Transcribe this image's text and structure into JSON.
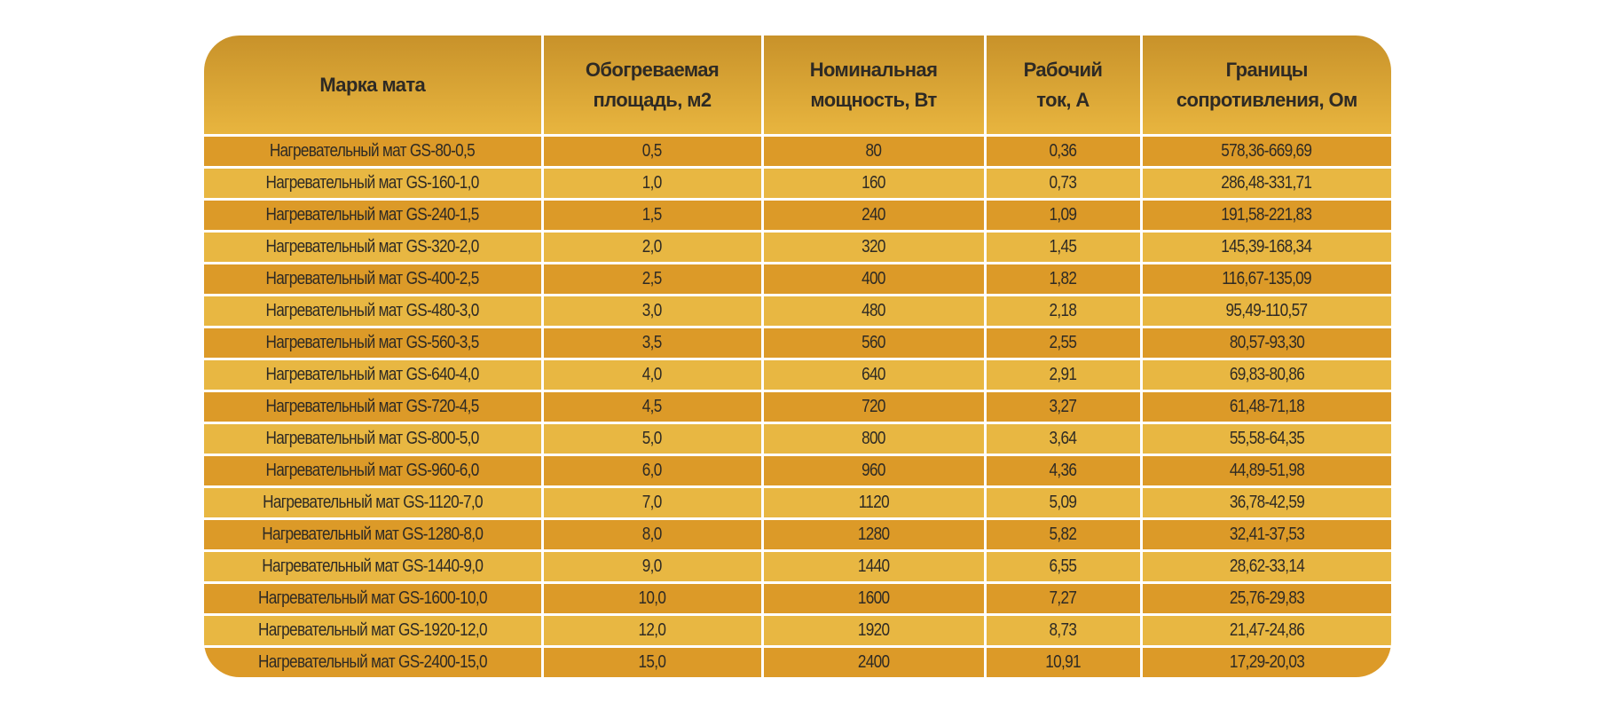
{
  "table": {
    "headers": [
      "Марка мата",
      "Обогреваемая площадь, м2",
      "Номинальная мощность, Вт",
      "Рабочий ток, А",
      "Границы сопротивления, Ом"
    ],
    "header_lines": [
      [
        "Марка мата"
      ],
      [
        "Обогреваемая",
        "площадь, м2"
      ],
      [
        "Номинальная",
        "мощность, Вт"
      ],
      [
        "Рабочий",
        "ток, А"
      ],
      [
        "Границы",
        "сопротивления, Ом"
      ]
    ],
    "rows": [
      [
        "Нагревательный мат GS-80-0,5",
        "0,5",
        "80",
        "0,36",
        "578,36-669,69"
      ],
      [
        "Нагревательный мат GS-160-1,0",
        "1,0",
        "160",
        "0,73",
        "286,48-331,71"
      ],
      [
        "Нагревательный мат GS-240-1,5",
        "1,5",
        "240",
        "1,09",
        "191,58-221,83"
      ],
      [
        "Нагревательный мат GS-320-2,0",
        "2,0",
        "320",
        "1,45",
        "145,39-168,34"
      ],
      [
        "Нагревательный мат GS-400-2,5",
        "2,5",
        "400",
        "1,82",
        "116,67-135,09"
      ],
      [
        "Нагревательный мат GS-480-3,0",
        "3,0",
        "480",
        "2,18",
        "95,49-110,57"
      ],
      [
        "Нагревательный мат GS-560-3,5",
        "3,5",
        "560",
        "2,55",
        "80,57-93,30"
      ],
      [
        "Нагревательный мат GS-640-4,0",
        "4,0",
        "640",
        "2,91",
        "69,83-80,86"
      ],
      [
        "Нагревательный мат GS-720-4,5",
        "4,5",
        "720",
        "3,27",
        "61,48-71,18"
      ],
      [
        "Нагревательный мат GS-800-5,0",
        "5,0",
        "800",
        "3,64",
        "55,58-64,35"
      ],
      [
        "Нагревательный мат GS-960-6,0",
        "6,0",
        "960",
        "4,36",
        "44,89-51,98"
      ],
      [
        "Нагревательный мат GS-1120-7,0",
        "7,0",
        "1120",
        "5,09",
        "36,78-42,59"
      ],
      [
        "Нагревательный мат GS-1280-8,0",
        "8,0",
        "1280",
        "5,82",
        "32,41-37,53"
      ],
      [
        "Нагревательный мат GS-1440-9,0",
        "9,0",
        "1440",
        "6,55",
        "28,62-33,14"
      ],
      [
        "Нагревательный мат GS-1600-10,0",
        "10,0",
        "1600",
        "7,27",
        "25,76-29,83"
      ],
      [
        "Нагревательный мат GS-1920-12,0",
        "12,0",
        "1920",
        "8,73",
        "21,47-24,86"
      ],
      [
        "Нагревательный мат GS-2400-15,0",
        "15,0",
        "2400",
        "10,91",
        "17,29-20,03"
      ]
    ],
    "colors": {
      "header_top": "#c8922a",
      "header_bottom": "#e8b53f",
      "row_dark": "#dc9a28",
      "row_light": "#e8b742",
      "text": "#2e2a24"
    }
  }
}
